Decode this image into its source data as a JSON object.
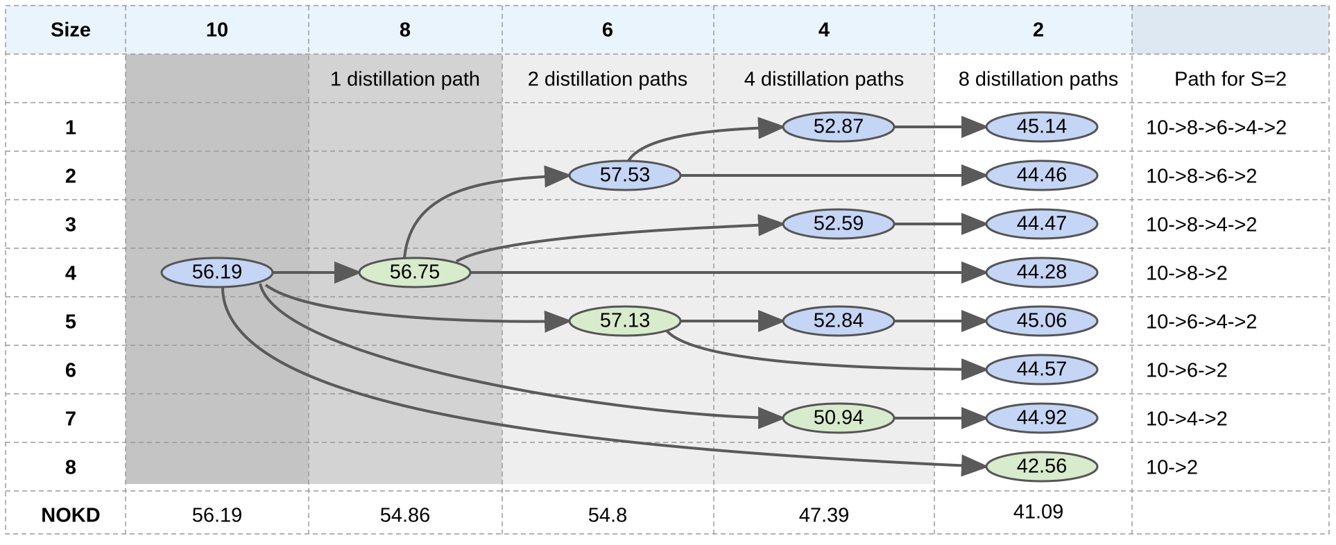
{
  "header": {
    "size_label": "Size",
    "columns": [
      "10",
      "8",
      "6",
      "4",
      "2",
      ""
    ]
  },
  "subheader": [
    "",
    "1 distillation path",
    "2 distillation paths",
    "4 distillation paths",
    "8 distillation paths",
    "Path for S=2"
  ],
  "rows": [
    "1",
    "2",
    "3",
    "4",
    "5",
    "6",
    "7",
    "8"
  ],
  "row_paths": [
    "10->8->6->4->2",
    "10->8->6->2",
    "10->8->4->2",
    "10->8->2",
    "10->6->4->2",
    "10->6->2",
    "10->4->2",
    "10->2"
  ],
  "nokd": {
    "label": "NOKD",
    "values": [
      "56.19",
      "54.86",
      "54.8",
      "47.39",
      "41.09",
      ""
    ]
  },
  "colors": {
    "header_bg": "#eaf4fd",
    "header_corner_bg": "#dde8f3",
    "col10_bg": "#c4c4c4",
    "col8_bg": "#d3d3d3",
    "col6_4_bg": "#eeeeee",
    "node_blue": "#c5d5f5",
    "node_green": "#d8ebcc"
  },
  "nodes": [
    {
      "id": "n10",
      "col": 0,
      "row": 4,
      "value": "56.19",
      "color": "blue"
    },
    {
      "id": "n8",
      "col": 1,
      "row": 4,
      "value": "56.75",
      "color": "green"
    },
    {
      "id": "n6a",
      "col": 2,
      "row": 2,
      "value": "57.53",
      "color": "blue"
    },
    {
      "id": "n6b",
      "col": 2,
      "row": 5,
      "value": "57.13",
      "color": "green"
    },
    {
      "id": "n4a",
      "col": 3,
      "row": 1,
      "value": "52.87",
      "color": "blue"
    },
    {
      "id": "n4b",
      "col": 3,
      "row": 3,
      "value": "52.59",
      "color": "blue"
    },
    {
      "id": "n4c",
      "col": 3,
      "row": 5,
      "value": "52.84",
      "color": "blue"
    },
    {
      "id": "n4d",
      "col": 3,
      "row": 7,
      "value": "50.94",
      "color": "green"
    },
    {
      "id": "n2a",
      "col": 4,
      "row": 1,
      "value": "45.14",
      "color": "blue"
    },
    {
      "id": "n2b",
      "col": 4,
      "row": 2,
      "value": "44.46",
      "color": "blue"
    },
    {
      "id": "n2c",
      "col": 4,
      "row": 3,
      "value": "44.47",
      "color": "blue"
    },
    {
      "id": "n2d",
      "col": 4,
      "row": 4,
      "value": "44.28",
      "color": "blue"
    },
    {
      "id": "n2e",
      "col": 4,
      "row": 5,
      "value": "45.06",
      "color": "blue"
    },
    {
      "id": "n2f",
      "col": 4,
      "row": 6,
      "value": "44.57",
      "color": "blue"
    },
    {
      "id": "n2g",
      "col": 4,
      "row": 7,
      "value": "44.92",
      "color": "blue"
    },
    {
      "id": "n2h",
      "col": 4,
      "row": 8,
      "value": "42.56",
      "color": "green"
    }
  ],
  "edges": [
    {
      "from": "n10",
      "to": "n8"
    },
    {
      "from": "n8",
      "to": "n6a"
    },
    {
      "from": "n6a",
      "to": "n4a"
    },
    {
      "from": "n4a",
      "to": "n2a"
    },
    {
      "from": "n6a",
      "to": "n2b"
    },
    {
      "from": "n8",
      "to": "n4b"
    },
    {
      "from": "n4b",
      "to": "n2c"
    },
    {
      "from": "n8",
      "to": "n2d"
    },
    {
      "from": "n10",
      "to": "n6b"
    },
    {
      "from": "n6b",
      "to": "n4c"
    },
    {
      "from": "n4c",
      "to": "n2e"
    },
    {
      "from": "n6b",
      "to": "n2f"
    },
    {
      "from": "n10",
      "to": "n4d"
    },
    {
      "from": "n4d",
      "to": "n2g"
    },
    {
      "from": "n10",
      "to": "n2h"
    }
  ]
}
